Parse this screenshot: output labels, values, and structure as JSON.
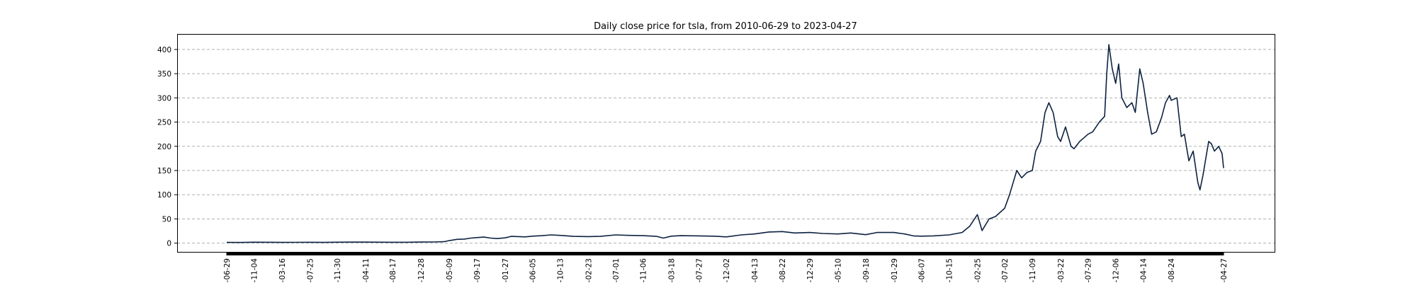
{
  "chart_data": {
    "type": "line",
    "title": "Daily close price for tsla, from 2010-06-29 to 2023-04-27",
    "xlabel": "",
    "ylabel": "",
    "x_range": [
      "2010-06-29",
      "2023-04-27"
    ],
    "ylim": [
      -18,
      432
    ],
    "yticks": [
      0,
      50,
      100,
      150,
      200,
      250,
      300,
      350,
      400
    ],
    "grid": "horizontal dashed",
    "colors": {
      "line": "#0d2240",
      "grid": "#b0b0b0"
    },
    "xticks": [
      {
        "date": "2010-06-29",
        "label": "-06-29"
      },
      {
        "date": "2010-11-04",
        "label": "-11-04"
      },
      {
        "date": "2011-03-16",
        "label": "-03-16"
      },
      {
        "date": "2011-07-25",
        "label": "-07-25"
      },
      {
        "date": "2011-11-30",
        "label": "-11-30"
      },
      {
        "date": "2012-04-11",
        "label": "-04-11"
      },
      {
        "date": "2012-08-17",
        "label": "-08-17"
      },
      {
        "date": "2012-12-28",
        "label": "-12-28"
      },
      {
        "date": "2013-05-09",
        "label": "-05-09"
      },
      {
        "date": "2013-09-17",
        "label": "-09-17"
      },
      {
        "date": "2014-01-27",
        "label": "-01-27"
      },
      {
        "date": "2014-06-05",
        "label": "-06-05"
      },
      {
        "date": "2014-10-13",
        "label": "-10-13"
      },
      {
        "date": "2015-02-23",
        "label": "-02-23"
      },
      {
        "date": "2015-07-01",
        "label": "-07-01"
      },
      {
        "date": "2015-11-06",
        "label": "-11-06"
      },
      {
        "date": "2016-03-18",
        "label": "-03-18"
      },
      {
        "date": "2016-07-27",
        "label": "-07-27"
      },
      {
        "date": "2016-12-02",
        "label": "-12-02"
      },
      {
        "date": "2017-04-13",
        "label": "-04-13"
      },
      {
        "date": "2017-08-22",
        "label": "-08-22"
      },
      {
        "date": "2017-12-29",
        "label": "-12-29"
      },
      {
        "date": "2018-05-10",
        "label": "-05-10"
      },
      {
        "date": "2018-09-18",
        "label": "-09-18"
      },
      {
        "date": "2019-01-29",
        "label": "-01-29"
      },
      {
        "date": "2019-06-07",
        "label": "-06-07"
      },
      {
        "date": "2019-10-15",
        "label": "-10-15"
      },
      {
        "date": "2020-02-25",
        "label": "-02-25"
      },
      {
        "date": "2020-07-02",
        "label": "-07-02"
      },
      {
        "date": "2020-11-09",
        "label": "-11-09"
      },
      {
        "date": "2021-03-22",
        "label": "-03-22"
      },
      {
        "date": "2021-07-29",
        "label": "-07-29"
      },
      {
        "date": "2021-12-06",
        "label": "-12-06"
      },
      {
        "date": "2022-04-14",
        "label": "-04-14"
      },
      {
        "date": "2022-08-24",
        "label": "-08-24"
      },
      {
        "date": "2023-04-27",
        "label": "-04-27"
      }
    ],
    "series": [
      {
        "x": [
          "2010-06-29",
          "2010-09-01",
          "2010-11-04",
          "2011-01-10",
          "2011-03-16",
          "2011-05-20",
          "2011-07-25",
          "2011-09-28",
          "2011-11-30",
          "2012-02-05",
          "2012-04-11",
          "2012-06-14",
          "2012-08-17",
          "2012-10-20",
          "2012-12-28",
          "2013-03-01",
          "2013-04-15",
          "2013-05-09",
          "2013-06-15",
          "2013-07-20",
          "2013-08-20",
          "2013-09-17",
          "2013-10-20",
          "2013-11-20",
          "2013-12-20",
          "2014-01-27",
          "2014-02-25",
          "2014-04-01",
          "2014-05-01",
          "2014-06-05",
          "2014-07-20",
          "2014-09-01",
          "2014-10-13",
          "2014-12-15",
          "2015-02-23",
          "2015-04-20",
          "2015-07-01",
          "2015-09-01",
          "2015-11-06",
          "2016-01-10",
          "2016-02-10",
          "2016-03-18",
          "2016-05-01",
          "2016-07-27",
          "2016-10-01",
          "2016-12-02",
          "2017-02-10",
          "2017-04-13",
          "2017-06-20",
          "2017-08-22",
          "2017-10-20",
          "2017-12-29",
          "2018-03-01",
          "2018-05-10",
          "2018-07-10",
          "2018-09-18",
          "2018-11-10",
          "2019-01-29",
          "2019-03-20",
          "2019-05-01",
          "2019-06-07",
          "2019-08-01",
          "2019-10-15",
          "2019-12-15",
          "2020-01-20",
          "2020-02-25",
          "2020-03-18",
          "2020-04-20",
          "2020-05-20",
          "2020-07-02",
          "2020-07-25",
          "2020-08-28",
          "2020-09-20",
          "2020-10-15",
          "2020-11-09",
          "2020-11-25",
          "2020-12-18",
          "2021-01-08",
          "2021-01-26",
          "2021-02-15",
          "2021-03-08",
          "2021-03-22",
          "2021-04-14",
          "2021-05-10",
          "2021-05-24",
          "2021-06-20",
          "2021-07-29",
          "2021-08-20",
          "2021-09-20",
          "2021-10-15",
          "2021-10-25",
          "2021-11-04",
          "2021-11-20",
          "2021-12-06",
          "2021-12-20",
          "2022-01-04",
          "2022-01-27",
          "2022-02-20",
          "2022-03-08",
          "2022-03-29",
          "2022-04-14",
          "2022-05-05",
          "2022-05-24",
          "2022-06-15",
          "2022-07-10",
          "2022-07-28",
          "2022-08-16",
          "2022-08-24",
          "2022-09-20",
          "2022-10-10",
          "2022-10-25",
          "2022-11-15",
          "2022-12-05",
          "2022-12-27",
          "2023-01-06",
          "2023-01-20",
          "2023-02-10",
          "2023-02-16",
          "2023-03-01",
          "2023-03-15",
          "2023-04-04",
          "2023-04-20",
          "2023-04-27"
        ],
        "y": [
          1.6,
          1.5,
          2.0,
          1.8,
          1.6,
          1.7,
          1.8,
          1.6,
          2.0,
          2.1,
          2.2,
          2.0,
          1.9,
          1.8,
          2.3,
          2.5,
          3.0,
          5.2,
          7.8,
          8.5,
          10.5,
          11.5,
          12.5,
          10.5,
          9.5,
          11.0,
          14.0,
          13.5,
          13.0,
          14.5,
          15.5,
          17.0,
          16.0,
          14.0,
          13.5,
          14.0,
          17.0,
          16.0,
          15.5,
          14.0,
          10.5,
          14.5,
          15.5,
          15.0,
          14.5,
          13.0,
          17.0,
          19.0,
          23.0,
          24.0,
          21.0,
          22.0,
          20.0,
          19.0,
          21.0,
          17.5,
          22.0,
          22.0,
          19.0,
          15.0,
          14.5,
          15.0,
          17.0,
          22.0,
          35.0,
          59.0,
          26.0,
          50.0,
          55.0,
          72.0,
          100.0,
          150.0,
          135.0,
          146.0,
          150.0,
          190.0,
          210.0,
          270.0,
          290.0,
          270.0,
          220.0,
          210.0,
          240.0,
          200.0,
          195.0,
          210.0,
          225.0,
          230.0,
          250.0,
          262.0,
          350.0,
          410.0,
          360.0,
          330.0,
          370.0,
          300.0,
          280.0,
          290.0,
          270.0,
          360.0,
          330.0,
          270.0,
          225.0,
          230.0,
          260.0,
          290.0,
          305.0,
          295.0,
          300.0,
          220.0,
          225.0,
          170.0,
          190.0,
          125.0,
          110.0,
          140.0,
          195.0,
          210.0,
          205.0,
          190.0,
          200.0,
          185.0,
          155.0
        ]
      }
    ]
  }
}
